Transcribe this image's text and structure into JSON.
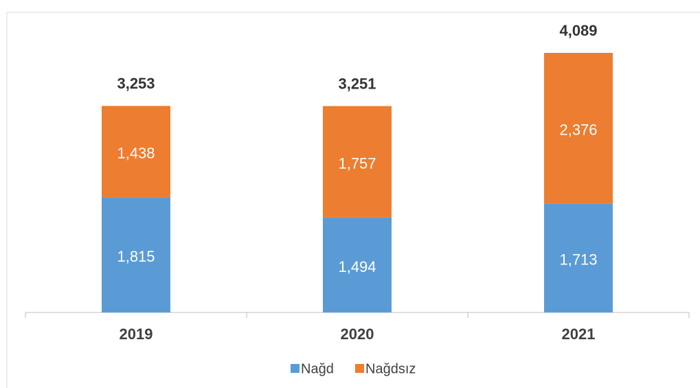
{
  "chart_data": {
    "type": "stacked_bar",
    "categories": [
      "2019",
      "2020",
      "2021"
    ],
    "series": [
      {
        "name": "Nağd",
        "color": "#5b9bd5",
        "values": [
          1815,
          1494,
          1713
        ],
        "value_labels": [
          "1,815",
          "1,494",
          "1,713"
        ]
      },
      {
        "name": "Nağdsız",
        "color": "#ed7d31",
        "values": [
          1438,
          1757,
          2376
        ],
        "value_labels": [
          "1,438",
          "1,757",
          "2,376"
        ]
      }
    ],
    "totals": [
      3253,
      3251,
      4089
    ],
    "total_labels": [
      "3,253",
      "3,251",
      "4,089"
    ],
    "ylim": [
      0,
      4500
    ],
    "legend": "bottom"
  }
}
